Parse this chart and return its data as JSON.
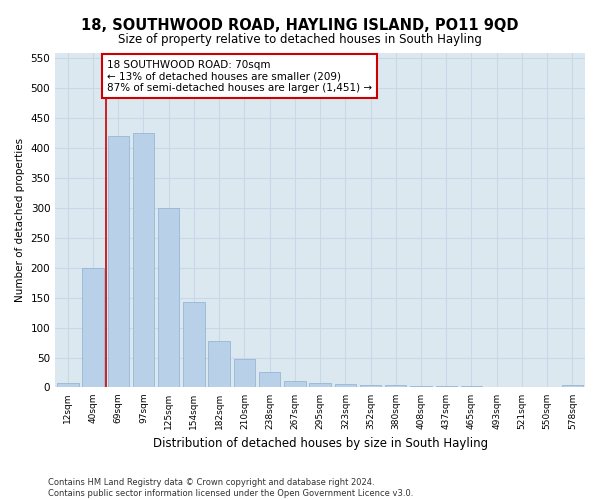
{
  "title": "18, SOUTHWOOD ROAD, HAYLING ISLAND, PO11 9QD",
  "subtitle": "Size of property relative to detached houses in South Hayling",
  "xlabel": "Distribution of detached houses by size in South Hayling",
  "ylabel": "Number of detached properties",
  "categories": [
    "12sqm",
    "40sqm",
    "69sqm",
    "97sqm",
    "125sqm",
    "154sqm",
    "182sqm",
    "210sqm",
    "238sqm",
    "267sqm",
    "295sqm",
    "323sqm",
    "352sqm",
    "380sqm",
    "408sqm",
    "437sqm",
    "465sqm",
    "493sqm",
    "521sqm",
    "550sqm",
    "578sqm"
  ],
  "values": [
    8,
    200,
    420,
    425,
    300,
    143,
    77,
    47,
    25,
    11,
    8,
    5,
    4,
    4,
    3,
    2,
    2,
    1,
    1,
    0,
    4
  ],
  "bar_color": "#b8d0e8",
  "bar_edge_color": "#8ab0d0",
  "vline_color": "#cc0000",
  "annotation_text": "18 SOUTHWOOD ROAD: 70sqm\n← 13% of detached houses are smaller (209)\n87% of semi-detached houses are larger (1,451) →",
  "annotation_box_color": "#ffffff",
  "annotation_box_edge_color": "#cc0000",
  "ylim": [
    0,
    560
  ],
  "yticks": [
    0,
    50,
    100,
    150,
    200,
    250,
    300,
    350,
    400,
    450,
    500,
    550
  ],
  "grid_color": "#c8d8e8",
  "background_color": "#dce8f0",
  "fig_background": "#ffffff",
  "footer_line1": "Contains HM Land Registry data © Crown copyright and database right 2024.",
  "footer_line2": "Contains public sector information licensed under the Open Government Licence v3.0."
}
